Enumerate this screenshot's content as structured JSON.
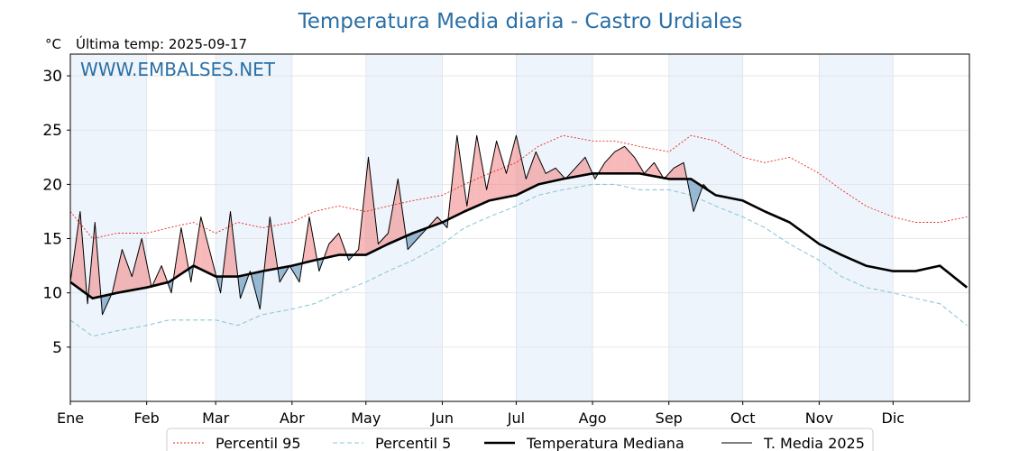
{
  "chart_data": {
    "type": "line",
    "title": "Temperatura Media diaria - Castro Urdiales",
    "ylabel": "°C",
    "subtitle": "Última temp: 2025-09-17",
    "watermark": "WWW.EMBALSES.NET",
    "ylim": [
      0,
      32
    ],
    "yticks": [
      5,
      10,
      15,
      20,
      25,
      30
    ],
    "x_domain": [
      "2025-01-01",
      "2026-01-01"
    ],
    "xticks": [
      {
        "label": "Ene",
        "date": "2025-01-01"
      },
      {
        "label": "Feb",
        "date": "2025-02-01"
      },
      {
        "label": "Mar",
        "date": "2025-03-01"
      },
      {
        "label": "Abr",
        "date": "2025-04-01"
      },
      {
        "label": "May",
        "date": "2025-05-01"
      },
      {
        "label": "Jun",
        "date": "2025-06-01"
      },
      {
        "label": "Jul",
        "date": "2025-07-01"
      },
      {
        "label": "Ago",
        "date": "2025-08-01"
      },
      {
        "label": "Sep",
        "date": "2025-09-01"
      },
      {
        "label": "Oct",
        "date": "2025-10-01"
      },
      {
        "label": "Nov",
        "date": "2025-11-01"
      },
      {
        "label": "Dic",
        "date": "2025-12-01"
      }
    ],
    "grid": true,
    "shaded_months": [
      "Ene",
      "Mar",
      "May",
      "Jul",
      "Sep",
      "Nov"
    ],
    "legend_position": "bottom-center",
    "colors": {
      "p95": "#e8281e",
      "p5": "#8ec8d8",
      "median": "#000000",
      "current": "#000000",
      "above_fill": "#f28b8b",
      "below_fill": "#5b8db8",
      "band": "#eef4fb"
    },
    "series": [
      {
        "key": "p95",
        "name": "Percentil 95",
        "style": "dotted",
        "x": [
          "2025-01-01",
          "2025-01-10",
          "2025-01-20",
          "2025-02-01",
          "2025-02-10",
          "2025-02-20",
          "2025-03-01",
          "2025-03-10",
          "2025-03-20",
          "2025-04-01",
          "2025-04-10",
          "2025-04-20",
          "2025-05-01",
          "2025-05-10",
          "2025-05-20",
          "2025-06-01",
          "2025-06-10",
          "2025-06-20",
          "2025-07-01",
          "2025-07-10",
          "2025-07-20",
          "2025-08-01",
          "2025-08-10",
          "2025-08-20",
          "2025-09-01",
          "2025-09-10",
          "2025-09-20",
          "2025-10-01",
          "2025-10-10",
          "2025-10-20",
          "2025-11-01",
          "2025-11-10",
          "2025-11-20",
          "2025-12-01",
          "2025-12-10",
          "2025-12-20",
          "2025-12-31"
        ],
        "values": [
          17.5,
          15.0,
          15.5,
          15.5,
          16.0,
          16.5,
          15.5,
          16.5,
          16.0,
          16.5,
          17.5,
          18.0,
          17.5,
          18.0,
          18.5,
          19.0,
          20.0,
          21.0,
          22.0,
          23.5,
          24.5,
          24.0,
          24.0,
          23.5,
          23.0,
          24.5,
          24.0,
          22.5,
          22.0,
          22.5,
          21.0,
          19.5,
          18.0,
          17.0,
          16.5,
          16.5,
          17.0
        ]
      },
      {
        "key": "p5",
        "name": "Percentil 5",
        "style": "dashed",
        "x": [
          "2025-01-01",
          "2025-01-10",
          "2025-01-20",
          "2025-02-01",
          "2025-02-10",
          "2025-02-20",
          "2025-03-01",
          "2025-03-10",
          "2025-03-20",
          "2025-04-01",
          "2025-04-10",
          "2025-04-20",
          "2025-05-01",
          "2025-05-10",
          "2025-05-20",
          "2025-06-01",
          "2025-06-10",
          "2025-06-20",
          "2025-07-01",
          "2025-07-10",
          "2025-07-20",
          "2025-08-01",
          "2025-08-10",
          "2025-08-20",
          "2025-09-01",
          "2025-09-10",
          "2025-09-20",
          "2025-10-01",
          "2025-10-10",
          "2025-10-20",
          "2025-11-01",
          "2025-11-10",
          "2025-11-20",
          "2025-12-01",
          "2025-12-10",
          "2025-12-20",
          "2025-12-31"
        ],
        "values": [
          7.5,
          6.0,
          6.5,
          7.0,
          7.5,
          7.5,
          7.5,
          7.0,
          8.0,
          8.5,
          9.0,
          10.0,
          11.0,
          12.0,
          13.0,
          14.5,
          16.0,
          17.0,
          18.0,
          19.0,
          19.5,
          20.0,
          20.0,
          19.5,
          19.5,
          19.0,
          18.0,
          17.0,
          16.0,
          14.5,
          13.0,
          11.5,
          10.5,
          10.0,
          9.5,
          9.0,
          7.0
        ]
      },
      {
        "key": "median",
        "name": "Temperatura Mediana",
        "style": "solid-thick",
        "x": [
          "2025-01-01",
          "2025-01-10",
          "2025-01-20",
          "2025-02-01",
          "2025-02-10",
          "2025-02-20",
          "2025-03-01",
          "2025-03-10",
          "2025-03-20",
          "2025-04-01",
          "2025-04-10",
          "2025-04-20",
          "2025-05-01",
          "2025-05-10",
          "2025-05-20",
          "2025-06-01",
          "2025-06-10",
          "2025-06-20",
          "2025-07-01",
          "2025-07-10",
          "2025-07-20",
          "2025-08-01",
          "2025-08-10",
          "2025-08-20",
          "2025-09-01",
          "2025-09-10",
          "2025-09-20",
          "2025-10-01",
          "2025-10-10",
          "2025-10-20",
          "2025-11-01",
          "2025-11-10",
          "2025-11-20",
          "2025-12-01",
          "2025-12-10",
          "2025-12-20",
          "2025-12-31"
        ],
        "values": [
          11.0,
          9.5,
          10.0,
          10.5,
          11.0,
          12.5,
          11.5,
          11.5,
          12.0,
          12.5,
          13.0,
          13.5,
          13.5,
          14.5,
          15.5,
          16.5,
          17.5,
          18.5,
          19.0,
          20.0,
          20.5,
          21.0,
          21.0,
          21.0,
          20.5,
          20.5,
          19.0,
          18.5,
          17.5,
          16.5,
          14.5,
          13.5,
          12.5,
          12.0,
          12.0,
          12.5,
          10.5
        ]
      },
      {
        "key": "current",
        "name": "T. Media 2025",
        "style": "solid-thin",
        "x": [
          "2025-01-01",
          "2025-01-05",
          "2025-01-08",
          "2025-01-11",
          "2025-01-14",
          "2025-01-18",
          "2025-01-22",
          "2025-01-26",
          "2025-01-30",
          "2025-02-03",
          "2025-02-07",
          "2025-02-11",
          "2025-02-15",
          "2025-02-19",
          "2025-02-23",
          "2025-02-27",
          "2025-03-03",
          "2025-03-07",
          "2025-03-11",
          "2025-03-15",
          "2025-03-19",
          "2025-03-23",
          "2025-03-27",
          "2025-03-31",
          "2025-04-04",
          "2025-04-08",
          "2025-04-12",
          "2025-04-16",
          "2025-04-20",
          "2025-04-24",
          "2025-04-28",
          "2025-05-02",
          "2025-05-06",
          "2025-05-10",
          "2025-05-14",
          "2025-05-18",
          "2025-05-22",
          "2025-05-26",
          "2025-05-30",
          "2025-06-03",
          "2025-06-07",
          "2025-06-11",
          "2025-06-15",
          "2025-06-19",
          "2025-06-23",
          "2025-06-27",
          "2025-07-01",
          "2025-07-05",
          "2025-07-09",
          "2025-07-13",
          "2025-07-17",
          "2025-07-21",
          "2025-07-25",
          "2025-07-29",
          "2025-08-02",
          "2025-08-06",
          "2025-08-10",
          "2025-08-14",
          "2025-08-18",
          "2025-08-22",
          "2025-08-26",
          "2025-08-30",
          "2025-09-03",
          "2025-09-07",
          "2025-09-11",
          "2025-09-15",
          "2025-09-17"
        ],
        "values": [
          11.0,
          17.5,
          9.0,
          16.5,
          8.0,
          10.0,
          14.0,
          11.5,
          15.0,
          10.5,
          12.5,
          10.0,
          16.0,
          11.0,
          17.0,
          13.5,
          10.0,
          17.5,
          9.5,
          12.0,
          8.5,
          17.0,
          11.0,
          12.5,
          11.0,
          17.0,
          12.0,
          14.5,
          15.5,
          13.0,
          14.0,
          22.5,
          14.5,
          15.5,
          20.5,
          14.0,
          15.0,
          16.0,
          17.0,
          16.0,
          24.5,
          18.0,
          24.5,
          19.5,
          24.0,
          21.0,
          24.5,
          20.5,
          23.0,
          21.0,
          21.5,
          20.5,
          21.5,
          22.5,
          20.5,
          22.0,
          23.0,
          23.5,
          22.5,
          21.0,
          22.0,
          20.5,
          21.5,
          22.0,
          17.5,
          20.0,
          19.5
        ]
      }
    ],
    "legend": [
      {
        "key": "p95",
        "label": "Percentil 95"
      },
      {
        "key": "p5",
        "label": "Percentil 5"
      },
      {
        "key": "median",
        "label": "Temperatura Mediana"
      },
      {
        "key": "current",
        "label": "T. Media 2025"
      }
    ]
  }
}
